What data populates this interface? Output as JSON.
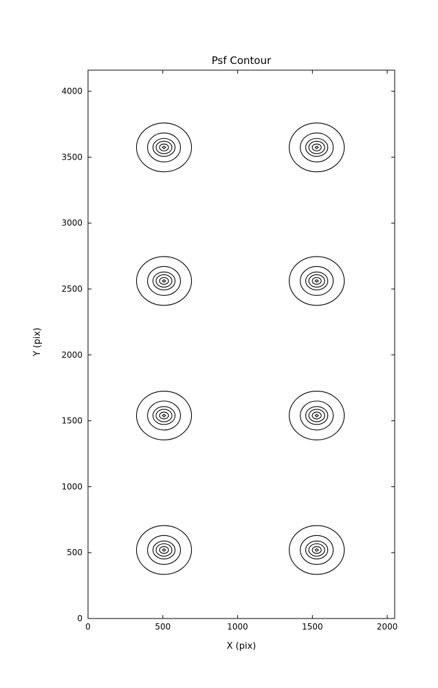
{
  "figure": {
    "background": "#ffffff",
    "frame_color": "#000000",
    "line_color": "#000000"
  },
  "chart_data": {
    "type": "contour",
    "title": "Psf Contour",
    "xlabel": "X (pix)",
    "ylabel": "Y (pix)",
    "xlim": [
      0,
      2050
    ],
    "ylim": [
      0,
      4160
    ],
    "xticks": [
      0,
      500,
      1000,
      1500,
      2000
    ],
    "yticks": [
      0,
      500,
      1000,
      1500,
      2000,
      2500,
      3000,
      3500,
      4000
    ],
    "xtick_labels": [
      "0",
      "500",
      "1000",
      "1500",
      "2000"
    ],
    "ytick_labels": [
      "0",
      "500",
      "1000",
      "1500",
      "2000",
      "2500",
      "3000",
      "3500",
      "4000"
    ],
    "grid": false,
    "legend": null,
    "tick_direction": "in",
    "contour_line_color": "#000000",
    "psf_centers": [
      [
        508,
        3574
      ],
      [
        1529,
        3574
      ],
      [
        508,
        2561
      ],
      [
        1529,
        2561
      ],
      [
        508,
        1540
      ],
      [
        1529,
        1540
      ],
      [
        508,
        520
      ],
      [
        1529,
        520
      ]
    ],
    "ring_rx": [
      184,
      110,
      74,
      53,
      30
    ],
    "ring_ry": [
      185,
      110,
      68,
      47,
      26
    ],
    "center_diamond_rx": 11,
    "center_diamond_ry": 10
  }
}
